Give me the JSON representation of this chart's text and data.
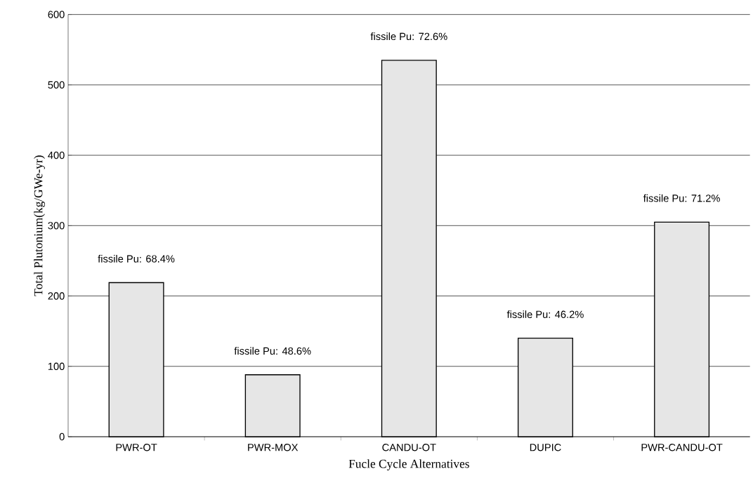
{
  "chart_data": {
    "type": "bar",
    "xlabel": "Fucle Cycle Alternatives",
    "ylabel": "Total Plutonium(kg/GWe-yr)",
    "categories": [
      "PWR-OT",
      "PWR-MOX",
      "CANDU-OT",
      "DUPIC",
      "PWR-CANDU-OT"
    ],
    "values": [
      219,
      88,
      535,
      140,
      305
    ],
    "color": "#e6e6e6",
    "ylim": [
      0,
      600
    ],
    "yticks": [
      0,
      100,
      200,
      300,
      400,
      500,
      600
    ],
    "grid": "y",
    "annotations": [
      "fissile Pu: 68.4%",
      "fissile Pu: 48.6%",
      "fissile Pu: 72.6%",
      "fissile Pu: 46.2%",
      "fissile Pu: 71.2%"
    ]
  }
}
